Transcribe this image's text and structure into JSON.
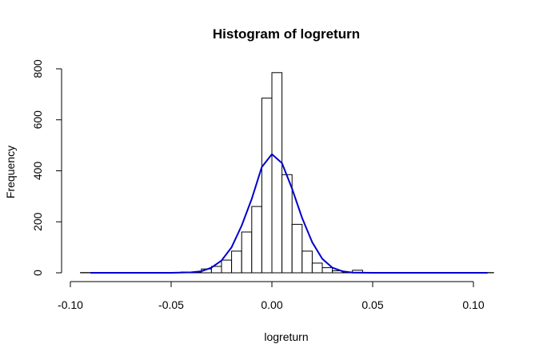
{
  "chart_data": {
    "type": "bar",
    "title": "Histogram of logreturn",
    "xlabel": "logreturn",
    "ylabel": "Frequency",
    "xlim": [
      -0.1,
      0.11
    ],
    "ylim": [
      0,
      800
    ],
    "xticks": [
      "-0.10",
      "-0.05",
      "0.00",
      "0.05",
      "0.10"
    ],
    "xtick_values": [
      -0.1,
      -0.05,
      0.0,
      0.05,
      0.1
    ],
    "yticks": [
      "0",
      "200",
      "400",
      "600",
      "800"
    ],
    "ytick_values": [
      0,
      200,
      400,
      600,
      800
    ],
    "bin_width": 0.005,
    "bins": [
      {
        "x0": -0.095,
        "count": 1
      },
      {
        "x0": -0.09,
        "count": 0
      },
      {
        "x0": -0.085,
        "count": 0
      },
      {
        "x0": -0.08,
        "count": 0
      },
      {
        "x0": -0.075,
        "count": 0
      },
      {
        "x0": -0.07,
        "count": 0
      },
      {
        "x0": -0.065,
        "count": 0
      },
      {
        "x0": -0.06,
        "count": 0
      },
      {
        "x0": -0.055,
        "count": 0
      },
      {
        "x0": -0.05,
        "count": 0
      },
      {
        "x0": -0.045,
        "count": 3
      },
      {
        "x0": -0.04,
        "count": 3
      },
      {
        "x0": -0.035,
        "count": 15
      },
      {
        "x0": -0.03,
        "count": 25
      },
      {
        "x0": -0.025,
        "count": 50
      },
      {
        "x0": -0.02,
        "count": 85
      },
      {
        "x0": -0.015,
        "count": 160
      },
      {
        "x0": -0.01,
        "count": 260
      },
      {
        "x0": -0.005,
        "count": 685
      },
      {
        "x0": 0.0,
        "count": 785
      },
      {
        "x0": 0.005,
        "count": 385
      },
      {
        "x0": 0.01,
        "count": 190
      },
      {
        "x0": 0.015,
        "count": 85
      },
      {
        "x0": 0.02,
        "count": 38
      },
      {
        "x0": 0.025,
        "count": 20
      },
      {
        "x0": 0.03,
        "count": 8
      },
      {
        "x0": 0.035,
        "count": 3
      },
      {
        "x0": 0.04,
        "count": 10
      },
      {
        "x0": 0.045,
        "count": 1
      },
      {
        "x0": 0.05,
        "count": 0
      },
      {
        "x0": 0.055,
        "count": 0
      },
      {
        "x0": 0.06,
        "count": 0
      },
      {
        "x0": 0.065,
        "count": 0
      },
      {
        "x0": 0.07,
        "count": 0
      },
      {
        "x0": 0.075,
        "count": 0
      },
      {
        "x0": 0.08,
        "count": 0
      },
      {
        "x0": 0.085,
        "count": 0
      },
      {
        "x0": 0.09,
        "count": 0
      },
      {
        "x0": 0.095,
        "count": 0
      },
      {
        "x0": 0.1,
        "count": 0
      },
      {
        "x0": 0.105,
        "count": 1
      }
    ],
    "density_curve": {
      "color": "#0000cc",
      "points": [
        [
          -0.09,
          0
        ],
        [
          -0.05,
          0
        ],
        [
          -0.04,
          2
        ],
        [
          -0.035,
          6
        ],
        [
          -0.03,
          20
        ],
        [
          -0.025,
          48
        ],
        [
          -0.02,
          100
        ],
        [
          -0.015,
          185
        ],
        [
          -0.01,
          290
        ],
        [
          -0.005,
          415
        ],
        [
          0.0,
          465
        ],
        [
          0.005,
          430
        ],
        [
          0.01,
          330
        ],
        [
          0.015,
          215
        ],
        [
          0.02,
          120
        ],
        [
          0.025,
          55
        ],
        [
          0.03,
          20
        ],
        [
          0.035,
          6
        ],
        [
          0.04,
          1
        ],
        [
          0.05,
          0
        ],
        [
          0.107,
          0
        ]
      ]
    },
    "bar_fill": "#ffffff",
    "bar_stroke": "#000000",
    "grid": false,
    "legend": "none"
  }
}
